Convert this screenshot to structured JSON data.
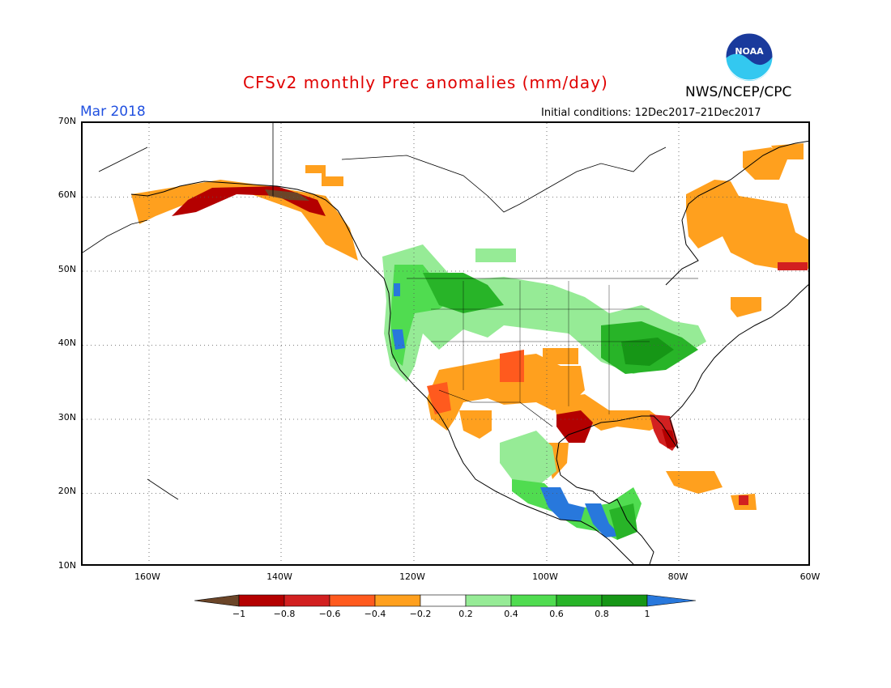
{
  "header": {
    "title": "CFSv2 monthly Prec anomalies (mm/day)",
    "month": "Mar 2018",
    "initial_conditions": "Initial conditions: 12Dec2017–21Dec2017",
    "agency": "NWS/NCEP/CPC",
    "logo_text": "NOAA"
  },
  "axes": {
    "lat_labels": [
      "70N",
      "60N",
      "50N",
      "40N",
      "30N",
      "20N",
      "10N"
    ],
    "lon_labels": [
      "160W",
      "140W",
      "120W",
      "100W",
      "80W",
      "60W"
    ]
  },
  "colorbar": {
    "labels": [
      "−1",
      "−0.8",
      "−0.6",
      "−0.4",
      "−0.2",
      "0.2",
      "0.4",
      "0.6",
      "0.8",
      "1"
    ],
    "colors": [
      "#6b4528",
      "#b40000",
      "#d22020",
      "#ff5a1e",
      "#ffa01e",
      "#ffffff",
      "#96eb96",
      "#50dc50",
      "#28b428",
      "#169616",
      "#2878dc"
    ]
  }
}
